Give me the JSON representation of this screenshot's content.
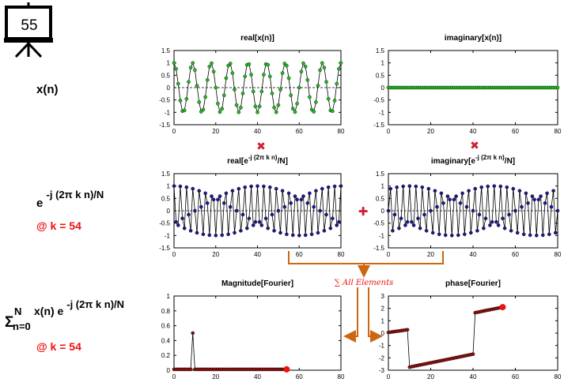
{
  "slide_number": "55",
  "left_labels": {
    "xn": "x(n)",
    "kernel_base": "e",
    "kernel_exp": "-j (2π k n)/N",
    "k_label_1": "@ k = 54",
    "sum_symbol": "Σ",
    "sum_upper": "N",
    "sum_lower": "n=0",
    "sum_term": " x(n) e",
    "sum_exp": "-j (2π k n)/N",
    "k_label_2": "@ k = 54"
  },
  "operators": {
    "multiply_1": "✖",
    "multiply_2": "✖",
    "plus": "✚",
    "sum_all": "∑ All Elements"
  },
  "colors": {
    "green": "#22bb22",
    "navy": "#1a1a8c",
    "red": "#ee1111",
    "dark_red": "#8b1010",
    "orange": "#cc6611",
    "op_red": "#cc2233"
  },
  "chart_data": [
    {
      "id": "real_x",
      "type": "line",
      "title": "real[x(n)]",
      "xlim": [
        0,
        80
      ],
      "ylim": [
        -1.5,
        1.5
      ],
      "xticks": [
        0,
        20,
        40,
        60,
        80
      ],
      "yticks": [
        -1.5,
        -1,
        -0.5,
        0,
        0.5,
        1,
        1.5
      ],
      "ytick_labels": [
        "-1.5",
        "-1",
        "-0.5",
        "0",
        "0.5",
        "1",
        "1.5"
      ],
      "dashed_zero": true,
      "series": [
        {
          "function": "cos(2π·9·n/80)",
          "n_range": [
            0,
            80
          ],
          "marker": "circle",
          "marker_color": "green"
        }
      ]
    },
    {
      "id": "imag_x",
      "type": "line",
      "title": "imaginary[x(n)]",
      "xlim": [
        0,
        80
      ],
      "ylim": [
        -1.5,
        1.5
      ],
      "xticks": [
        0,
        20,
        40,
        60,
        80
      ],
      "yticks": [
        -1.5,
        -1,
        -0.5,
        0,
        0.5,
        1,
        1.5
      ],
      "ytick_labels": [
        "-1.5",
        "-1",
        "-0.5",
        "0",
        "0.5",
        "1",
        "1.5"
      ],
      "dashed_zero": true,
      "series": [
        {
          "function": "0",
          "n_range": [
            0,
            80
          ],
          "marker": "circle",
          "marker_color": "green"
        }
      ]
    },
    {
      "id": "real_kernel",
      "type": "line",
      "title_main": "real[e",
      "title_exp": "-j (2π k n)",
      "title_tail": "/N]",
      "xlim": [
        0,
        80
      ],
      "ylim": [
        -1.5,
        1.5
      ],
      "xticks": [
        0,
        20,
        40,
        60,
        80
      ],
      "yticks": [
        -1.5,
        -1,
        -0.5,
        0,
        0.5,
        1,
        1.5
      ],
      "ytick_labels": [
        "-1.5",
        "-1",
        "-0.5",
        "0",
        "0.5",
        "1",
        "1.5"
      ],
      "dashed_zero": true,
      "series": [
        {
          "function": "cos(2π·54·n/80)",
          "n_range": [
            0,
            80
          ],
          "marker": "circle",
          "marker_color": "navy"
        }
      ]
    },
    {
      "id": "imag_kernel",
      "type": "line",
      "title_main": "imaginary[e",
      "title_exp": "-j (2π k n)",
      "title_tail": "/N]",
      "xlim": [
        0,
        80
      ],
      "ylim": [
        -1.5,
        1.5
      ],
      "xticks": [
        0,
        20,
        40,
        60,
        80
      ],
      "yticks": [
        -1.5,
        -1,
        -0.5,
        0,
        0.5,
        1,
        1.5
      ],
      "ytick_labels": [
        "-1.5",
        "-1",
        "-0.5",
        "0",
        "0.5",
        "1",
        "1.5"
      ],
      "dashed_zero": true,
      "series": [
        {
          "function": "-sin(2π·54·n/80)",
          "n_range": [
            0,
            80
          ],
          "marker": "circle",
          "marker_color": "navy"
        }
      ]
    },
    {
      "id": "magnitude",
      "type": "line",
      "title": "Magnitude[Fourier]",
      "xlim": [
        0,
        80
      ],
      "ylim": [
        0,
        1
      ],
      "xticks": [
        0,
        20,
        40,
        60,
        80
      ],
      "yticks": [
        0,
        0.2,
        0.4,
        0.6,
        0.8,
        1
      ],
      "ytick_labels": [
        "0",
        "0.2",
        "0.4",
        "0.6",
        "0.8",
        "1"
      ],
      "dashed_zero": false,
      "k_current": 54,
      "series": [
        {
          "function": "|DFT of cos(2π·9·n/80)| / 80, k = 0…54",
          "peak_k": 9,
          "peak_value": 0.5,
          "marker": "circle",
          "marker_color": "dark_red",
          "current_marker_color": "red",
          "future_dashed": true
        }
      ]
    },
    {
      "id": "phase",
      "type": "line",
      "title": "phase[Fourier]",
      "xlim": [
        0,
        80
      ],
      "ylim": [
        -3,
        3
      ],
      "xticks": [
        0,
        20,
        40,
        60,
        80
      ],
      "yticks": [
        -3,
        -2,
        -1,
        0,
        1,
        2,
        3
      ],
      "ytick_labels": [
        "-3",
        "-2",
        "-1",
        "0",
        "1",
        "2",
        "3"
      ],
      "dashed_zero": false,
      "k_current": 54,
      "series": [
        {
          "function": "phase of DFT of cos(2π·9·n/80), k = 0…54",
          "marker": "circle",
          "marker_color": "dark_red",
          "current_marker_color": "red"
        }
      ]
    }
  ]
}
